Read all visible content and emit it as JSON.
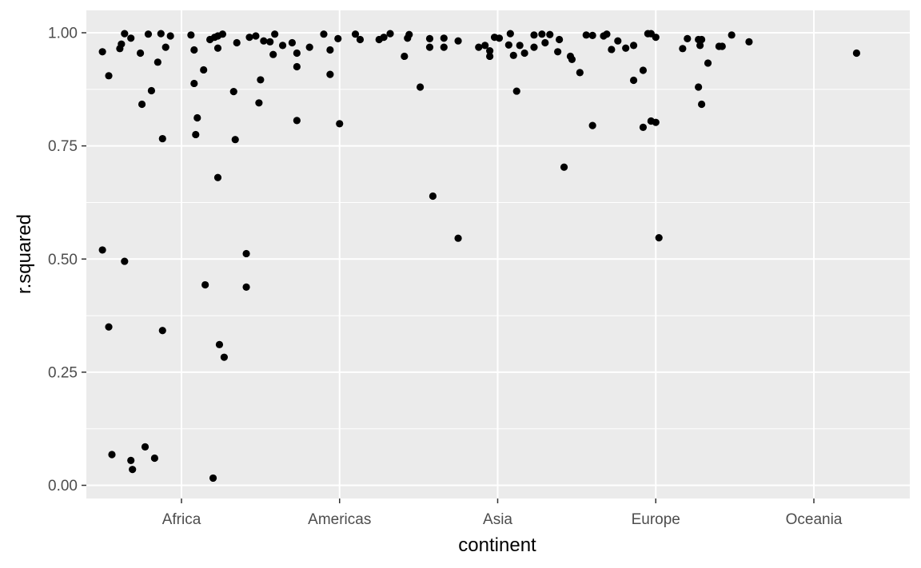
{
  "chart_data": {
    "type": "scatter",
    "title": "",
    "xlabel": "continent",
    "ylabel": "r.squared",
    "categories": [
      "Africa",
      "Americas",
      "Asia",
      "Europe",
      "Oceania"
    ],
    "ylim": [
      0,
      1
    ],
    "y_ticks": [
      "0.00",
      "0.25",
      "0.50",
      "0.75",
      "1.00"
    ],
    "y_tick_values": [
      0,
      0.25,
      0.5,
      0.75,
      1.0
    ],
    "grid": true,
    "legend": "none",
    "colors": {
      "panel": "#ebebeb",
      "grid": "#ffffff",
      "point": "#000000",
      "text": "#4d4d4d"
    },
    "jitter_note_free": true,
    "points": [
      {
        "x": -0.5,
        "y": 0.958
      },
      {
        "x": -0.46,
        "y": 0.905
      },
      {
        "x": -0.39,
        "y": 0.965
      },
      {
        "x": -0.38,
        "y": 0.975
      },
      {
        "x": -0.36,
        "y": 0.998
      },
      {
        "x": -0.32,
        "y": 0.988
      },
      {
        "x": -0.26,
        "y": 0.955
      },
      {
        "x": -0.21,
        "y": 0.997
      },
      {
        "x": -0.13,
        "y": 0.998
      },
      {
        "x": -0.07,
        "y": 0.993
      },
      {
        "x": 0.06,
        "y": 0.995
      },
      {
        "x": 0.23,
        "y": 0.993
      },
      {
        "x": 0.26,
        "y": 0.997
      },
      {
        "x": -0.25,
        "y": 0.842
      },
      {
        "x": -0.19,
        "y": 0.872
      },
      {
        "x": -0.15,
        "y": 0.935
      },
      {
        "x": -0.1,
        "y": 0.968
      },
      {
        "x": 0.08,
        "y": 0.962
      },
      {
        "x": 0.08,
        "y": 0.888
      },
      {
        "x": 0.1,
        "y": 0.812
      },
      {
        "x": 0.14,
        "y": 0.918
      },
      {
        "x": -0.12,
        "y": 0.766
      },
      {
        "x": 0.09,
        "y": 0.775
      },
      {
        "x": 0.23,
        "y": 0.966
      },
      {
        "x": 0.35,
        "y": 0.978
      },
      {
        "x": 0.33,
        "y": 0.87
      },
      {
        "x": 0.34,
        "y": 0.764
      },
      {
        "x": 0.5,
        "y": 0.896
      },
      {
        "x": 0.49,
        "y": 0.845
      },
      {
        "x": 0.23,
        "y": 0.68
      },
      {
        "x": 0.41,
        "y": 0.512
      },
      {
        "x": 0.41,
        "y": 0.438
      },
      {
        "x": 0.15,
        "y": 0.443
      },
      {
        "x": 0.24,
        "y": 0.311
      },
      {
        "x": 0.27,
        "y": 0.283
      },
      {
        "x": -0.5,
        "y": 0.52
      },
      {
        "x": -0.36,
        "y": 0.495
      },
      {
        "x": -0.46,
        "y": 0.35
      },
      {
        "x": -0.12,
        "y": 0.342
      },
      {
        "x": -0.44,
        "y": 0.068
      },
      {
        "x": -0.32,
        "y": 0.055
      },
      {
        "x": -0.31,
        "y": 0.035
      },
      {
        "x": -0.23,
        "y": 0.085
      },
      {
        "x": -0.17,
        "y": 0.06
      },
      {
        "x": 0.2,
        "y": 0.016
      },
      {
        "x": 0.18,
        "y": 0.985
      },
      {
        "x": 0.21,
        "y": 0.99
      },
      {
        "x": 0.43,
        "y": 0.99
      },
      {
        "x": 0.47,
        "y": 0.993
      },
      {
        "x": 0.52,
        "y": 0.982
      },
      {
        "x": 0.56,
        "y": 0.98
      },
      {
        "x": 0.59,
        "y": 0.997
      },
      {
        "x": 0.58,
        "y": 0.952
      },
      {
        "x": 0.64,
        "y": 0.972
      },
      {
        "x": 0.7,
        "y": 0.978
      },
      {
        "x": 0.73,
        "y": 0.955
      },
      {
        "x": 0.73,
        "y": 0.925
      },
      {
        "x": 0.73,
        "y": 0.806
      },
      {
        "x": 0.81,
        "y": 0.968
      },
      {
        "x": 0.9,
        "y": 0.997
      },
      {
        "x": 0.94,
        "y": 0.962
      },
      {
        "x": 0.94,
        "y": 0.908
      },
      {
        "x": 0.99,
        "y": 0.987
      },
      {
        "x": 1.0,
        "y": 0.799
      },
      {
        "x": 1.1,
        "y": 0.997
      },
      {
        "x": 1.13,
        "y": 0.985
      },
      {
        "x": 1.25,
        "y": 0.985
      },
      {
        "x": 1.28,
        "y": 0.99
      },
      {
        "x": 1.32,
        "y": 0.998
      },
      {
        "x": 1.41,
        "y": 0.948
      },
      {
        "x": 1.43,
        "y": 0.988
      },
      {
        "x": 1.44,
        "y": 0.996
      },
      {
        "x": 1.51,
        "y": 0.88
      },
      {
        "x": 1.57,
        "y": 0.968
      },
      {
        "x": 1.57,
        "y": 0.987
      },
      {
        "x": 1.59,
        "y": 0.639
      },
      {
        "x": 1.66,
        "y": 0.968
      },
      {
        "x": 1.66,
        "y": 0.988
      },
      {
        "x": 1.75,
        "y": 0.982
      },
      {
        "x": 1.75,
        "y": 0.546
      },
      {
        "x": 1.88,
        "y": 0.968
      },
      {
        "x": 1.92,
        "y": 0.972
      },
      {
        "x": 1.95,
        "y": 0.948
      },
      {
        "x": 1.95,
        "y": 0.96
      },
      {
        "x": 1.98,
        "y": 0.99
      },
      {
        "x": 2.01,
        "y": 0.988
      },
      {
        "x": 2.07,
        "y": 0.973
      },
      {
        "x": 2.08,
        "y": 0.998
      },
      {
        "x": 2.1,
        "y": 0.95
      },
      {
        "x": 2.12,
        "y": 0.871
      },
      {
        "x": 2.14,
        "y": 0.972
      },
      {
        "x": 2.17,
        "y": 0.955
      },
      {
        "x": 2.23,
        "y": 0.968
      },
      {
        "x": 2.23,
        "y": 0.995
      },
      {
        "x": 2.28,
        "y": 0.997
      },
      {
        "x": 2.3,
        "y": 0.978
      },
      {
        "x": 2.33,
        "y": 0.996
      },
      {
        "x": 2.38,
        "y": 0.958
      },
      {
        "x": 2.39,
        "y": 0.985
      },
      {
        "x": 2.42,
        "y": 0.703
      },
      {
        "x": 2.46,
        "y": 0.948
      },
      {
        "x": 2.47,
        "y": 0.941
      },
      {
        "x": 2.52,
        "y": 0.912
      },
      {
        "x": 2.56,
        "y": 0.995
      },
      {
        "x": 2.6,
        "y": 0.994
      },
      {
        "x": 2.6,
        "y": 0.795
      },
      {
        "x": 2.67,
        "y": 0.993
      },
      {
        "x": 2.69,
        "y": 0.997
      },
      {
        "x": 2.72,
        "y": 0.963
      },
      {
        "x": 2.76,
        "y": 0.982
      },
      {
        "x": 2.81,
        "y": 0.966
      },
      {
        "x": 2.86,
        "y": 0.895
      },
      {
        "x": 2.86,
        "y": 0.972
      },
      {
        "x": 2.92,
        "y": 0.791
      },
      {
        "x": 2.92,
        "y": 0.917
      },
      {
        "x": 2.95,
        "y": 0.998
      },
      {
        "x": 2.97,
        "y": 0.998
      },
      {
        "x": 2.97,
        "y": 0.805
      },
      {
        "x": 3.0,
        "y": 0.802
      },
      {
        "x": 3.0,
        "y": 0.99
      },
      {
        "x": 3.02,
        "y": 0.547
      },
      {
        "x": 3.17,
        "y": 0.965
      },
      {
        "x": 3.2,
        "y": 0.987
      },
      {
        "x": 3.27,
        "y": 0.88
      },
      {
        "x": 3.27,
        "y": 0.985
      },
      {
        "x": 3.28,
        "y": 0.972
      },
      {
        "x": 3.29,
        "y": 0.985
      },
      {
        "x": 3.29,
        "y": 0.842
      },
      {
        "x": 3.33,
        "y": 0.933
      },
      {
        "x": 3.4,
        "y": 0.97
      },
      {
        "x": 3.42,
        "y": 0.97
      },
      {
        "x": 3.48,
        "y": 0.995
      },
      {
        "x": 3.59,
        "y": 0.98
      },
      {
        "x": 4.27,
        "y": 0.955
      }
    ]
  }
}
